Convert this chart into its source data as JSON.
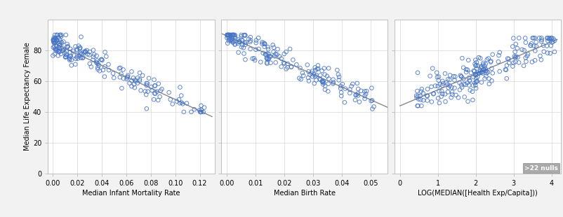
{
  "ylabel": "Median Life Expectancy Female",
  "subplots": [
    {
      "xlabel": "Median Infant Mortality Rate",
      "xlim": [
        -0.004,
        0.132
      ],
      "xticks": [
        0.0,
        0.02,
        0.04,
        0.06,
        0.08,
        0.1,
        0.12
      ],
      "xtick_labels": [
        "0.00",
        "0.02",
        "0.04",
        "0.06",
        "0.08",
        "0.10",
        "0.12"
      ],
      "trend_x": [
        0.0,
        0.13
      ],
      "trend_y": [
        85.0,
        37.0
      ]
    },
    {
      "xlabel": "Median Birth Rate",
      "xlim": [
        -0.002,
        0.056
      ],
      "xticks": [
        0.0,
        0.01,
        0.02,
        0.03,
        0.04,
        0.05
      ],
      "xtick_labels": [
        "0.00",
        "0.01",
        "0.02",
        "0.03",
        "0.04",
        "0.05"
      ],
      "trend_x": [
        -0.002,
        0.056
      ],
      "trend_y": [
        91.0,
        43.0
      ]
    },
    {
      "xlabel": "LOG(MEDIAN([Health Exp/Capita]))",
      "xlim": [
        -0.15,
        4.25
      ],
      "xticks": [
        0,
        1,
        2,
        3,
        4
      ],
      "xtick_labels": [
        "0",
        "1",
        "2",
        "3",
        "4"
      ],
      "trend_x": [
        0.0,
        4.15
      ],
      "trend_y": [
        44.0,
        87.0
      ]
    }
  ],
  "ylim": [
    0,
    100
  ],
  "yticks": [
    0,
    20,
    40,
    60,
    80
  ],
  "dot_color": "#4472C4",
  "dot_edge_color": "#4472C4",
  "dot_face_color": "none",
  "trend_color": "#888888",
  "background_color": "#f2f2f2",
  "plot_bg_color": "#ffffff",
  "grid_color": "#d8d8d8",
  "null_label": ">22 nulls",
  "n1": 200,
  "n2": 180,
  "n3": 220,
  "seed1": 42,
  "seed2": 99,
  "seed3": 17
}
